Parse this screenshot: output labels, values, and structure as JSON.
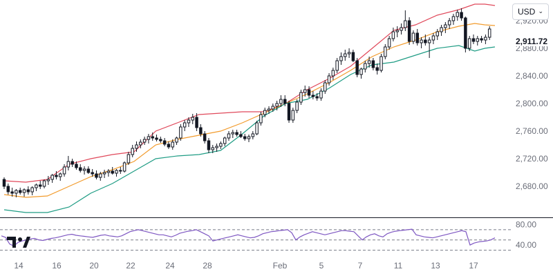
{
  "currency": {
    "selected": "USD"
  },
  "last_price_label": "2,911.72",
  "colors": {
    "up": "#131722",
    "down": "#131722",
    "upper_band": "#e0485a",
    "mid_band": "#f29b2c",
    "lower_band": "#1e9c84",
    "rsi": "#7e57c2",
    "axis_text": "#6a6d78"
  },
  "icons": {
    "logo": "tradingview-logo-icon",
    "dropdown": "chevron-down-icon"
  },
  "chart_data": [
    {
      "type": "candlestick",
      "title": "",
      "y_axis": {
        "ticks": [
          2680,
          2720,
          2760,
          2800,
          2840,
          2880,
          2920
        ],
        "tick_labels": [
          "2,680.00",
          "2,720.00",
          "2,760.00",
          "2,800.00",
          "2,840.00",
          "2,880.00",
          "2,920.00"
        ],
        "range": [
          2638,
          2950
        ]
      },
      "x_axis": {
        "tick_labels": [
          "14",
          "16",
          "20",
          "22",
          "24",
          "28",
          "Feb",
          "5",
          "7",
          "11",
          "13",
          "17"
        ]
      },
      "candles_ohlc": [
        [
          2690.0,
          2693.0,
          2676.0,
          2680.0
        ],
        [
          2680.0,
          2684.0,
          2668.0,
          2672.0
        ],
        [
          2672.0,
          2678.0,
          2665.0,
          2670.0
        ],
        [
          2670.0,
          2676.0,
          2664.0,
          2674.0
        ],
        [
          2674.0,
          2678.0,
          2668.0,
          2671.0
        ],
        [
          2671.0,
          2677.0,
          2665.0,
          2675.0
        ],
        [
          2675.0,
          2680.0,
          2668.0,
          2672.0
        ],
        [
          2672.0,
          2680.0,
          2667.0,
          2678.0
        ],
        [
          2678.0,
          2684.0,
          2673.0,
          2682.0
        ],
        [
          2682.0,
          2688.0,
          2676.0,
          2680.0
        ],
        [
          2680.0,
          2690.0,
          2677.0,
          2688.0
        ],
        [
          2688.0,
          2695.0,
          2682.0,
          2690.0
        ],
        [
          2690.0,
          2698.0,
          2685.0,
          2696.0
        ],
        [
          2696.0,
          2702.0,
          2690.0,
          2694.0
        ],
        [
          2694.0,
          2700.0,
          2688.0,
          2698.0
        ],
        [
          2698.0,
          2712.0,
          2694.0,
          2708.0
        ],
        [
          2708.0,
          2724.0,
          2703.0,
          2716.0
        ],
        [
          2716.0,
          2720.0,
          2708.0,
          2712.0
        ],
        [
          2712.0,
          2716.0,
          2704.0,
          2707.0
        ],
        [
          2707.0,
          2712.0,
          2700.0,
          2703.0
        ],
        [
          2703.0,
          2709.0,
          2697.0,
          2705.0
        ],
        [
          2705.0,
          2709.0,
          2698.0,
          2700.0
        ],
        [
          2700.0,
          2705.0,
          2694.0,
          2698.0
        ],
        [
          2698.0,
          2703.0,
          2690.0,
          2693.0
        ],
        [
          2693.0,
          2701.0,
          2688.0,
          2698.0
        ],
        [
          2698.0,
          2704.0,
          2692.0,
          2700.0
        ],
        [
          2700.0,
          2705.0,
          2694.0,
          2702.0
        ],
        [
          2702.0,
          2708.0,
          2697.0,
          2699.0
        ],
        [
          2699.0,
          2705.0,
          2694.0,
          2703.0
        ],
        [
          2703.0,
          2708.0,
          2698.0,
          2702.0
        ],
        [
          2702.0,
          2716.0,
          2700.0,
          2714.0
        ],
        [
          2714.0,
          2730.0,
          2711.0,
          2726.0
        ],
        [
          2726.0,
          2740.0,
          2722.0,
          2735.0
        ],
        [
          2735.0,
          2745.0,
          2730.0,
          2740.0
        ],
        [
          2740.0,
          2748.0,
          2735.0,
          2744.0
        ],
        [
          2744.0,
          2752.0,
          2740.0,
          2748.0
        ],
        [
          2748.0,
          2756.0,
          2742.0,
          2752.0
        ],
        [
          2752.0,
          2758.0,
          2746.0,
          2750.0
        ],
        [
          2750.0,
          2755.0,
          2745.0,
          2748.0
        ],
        [
          2748.0,
          2752.0,
          2743.0,
          2746.0
        ],
        [
          2746.0,
          2750.0,
          2738.0,
          2741.0
        ],
        [
          2741.0,
          2745.0,
          2734.0,
          2737.0
        ],
        [
          2737.0,
          2748.0,
          2733.0,
          2744.0
        ],
        [
          2744.0,
          2752.0,
          2740.0,
          2750.0
        ],
        [
          2750.0,
          2770.0,
          2746.0,
          2766.0
        ],
        [
          2766.0,
          2776.0,
          2760.0,
          2772.0
        ],
        [
          2772.0,
          2780.0,
          2766.0,
          2776.0
        ],
        [
          2776.0,
          2785.0,
          2770.0,
          2780.0
        ],
        [
          2780.0,
          2786.0,
          2760.0,
          2765.0
        ],
        [
          2765.0,
          2770.0,
          2752.0,
          2756.0
        ],
        [
          2756.0,
          2760.0,
          2742.0,
          2746.0
        ],
        [
          2746.0,
          2750.0,
          2728.0,
          2733.0
        ],
        [
          2733.0,
          2740.0,
          2728.0,
          2736.0
        ],
        [
          2736.0,
          2742.0,
          2730.0,
          2738.0
        ],
        [
          2738.0,
          2745.0,
          2734.0,
          2742.0
        ],
        [
          2742.0,
          2752.0,
          2738.0,
          2750.0
        ],
        [
          2750.0,
          2760.0,
          2746.0,
          2756.0
        ],
        [
          2756.0,
          2762.0,
          2750.0,
          2758.0
        ],
        [
          2758.0,
          2762.0,
          2752.0,
          2755.0
        ],
        [
          2755.0,
          2760.0,
          2750.0,
          2752.0
        ],
        [
          2752.0,
          2756.0,
          2746.0,
          2749.0
        ],
        [
          2749.0,
          2755.0,
          2744.0,
          2752.0
        ],
        [
          2752.0,
          2760.0,
          2748.0,
          2756.0
        ],
        [
          2756.0,
          2775.0,
          2754.0,
          2772.0
        ],
        [
          2772.0,
          2788.0,
          2768.0,
          2784.0
        ],
        [
          2784.0,
          2794.0,
          2780.0,
          2790.0
        ],
        [
          2790.0,
          2796.0,
          2785.0,
          2792.0
        ],
        [
          2792.0,
          2800.0,
          2788.0,
          2796.0
        ],
        [
          2796.0,
          2804.0,
          2790.0,
          2800.0
        ],
        [
          2800.0,
          2812.0,
          2795.0,
          2806.0
        ],
        [
          2806.0,
          2812.0,
          2796.0,
          2800.0
        ],
        [
          2800.0,
          2804.0,
          2772.0,
          2776.0
        ],
        [
          2776.0,
          2794.0,
          2772.0,
          2790.0
        ],
        [
          2790.0,
          2806.0,
          2786.0,
          2802.0
        ],
        [
          2802.0,
          2820.0,
          2798.0,
          2816.0
        ],
        [
          2816.0,
          2826.0,
          2810.0,
          2820.0
        ],
        [
          2820.0,
          2825.0,
          2808.0,
          2812.0
        ],
        [
          2812.0,
          2818.0,
          2806.0,
          2810.0
        ],
        [
          2810.0,
          2815.0,
          2804.0,
          2808.0
        ],
        [
          2808.0,
          2822.0,
          2804.0,
          2818.0
        ],
        [
          2818.0,
          2834.0,
          2814.0,
          2830.0
        ],
        [
          2830.0,
          2844.0,
          2826.0,
          2840.0
        ],
        [
          2840.0,
          2852.0,
          2834.0,
          2848.0
        ],
        [
          2848.0,
          2866.0,
          2844.0,
          2862.0
        ],
        [
          2862.0,
          2874.0,
          2856.0,
          2868.0
        ],
        [
          2868.0,
          2878.0,
          2862.0,
          2872.0
        ],
        [
          2872.0,
          2880.0,
          2866.0,
          2874.0
        ],
        [
          2874.0,
          2878.0,
          2860.0,
          2862.0
        ],
        [
          2862.0,
          2866.0,
          2838.0,
          2842.0
        ],
        [
          2842.0,
          2852.0,
          2836.0,
          2850.0
        ],
        [
          2850.0,
          2862.0,
          2845.0,
          2858.0
        ],
        [
          2858.0,
          2868.0,
          2852.0,
          2862.0
        ],
        [
          2862.0,
          2866.0,
          2848.0,
          2852.0
        ],
        [
          2852.0,
          2858.0,
          2842.0,
          2848.0
        ],
        [
          2848.0,
          2872.0,
          2845.0,
          2868.0
        ],
        [
          2868.0,
          2886.0,
          2864.0,
          2882.0
        ],
        [
          2882.0,
          2898.0,
          2878.0,
          2894.0
        ],
        [
          2894.0,
          2910.0,
          2890.0,
          2904.0
        ],
        [
          2904.0,
          2912.0,
          2896.0,
          2906.0
        ],
        [
          2906.0,
          2916.0,
          2900.0,
          2910.0
        ],
        [
          2910.0,
          2935.0,
          2905.0,
          2920.0
        ],
        [
          2920.0,
          2925.0,
          2885.0,
          2890.0
        ],
        [
          2890.0,
          2906.0,
          2886.0,
          2902.0
        ],
        [
          2902.0,
          2908.0,
          2884.0,
          2888.0
        ],
        [
          2888.0,
          2896.0,
          2880.0,
          2892.0
        ],
        [
          2892.0,
          2900.0,
          2884.0,
          2888.0
        ],
        [
          2888.0,
          2896.0,
          2866.0,
          2892.0
        ],
        [
          2892.0,
          2902.0,
          2886.0,
          2898.0
        ],
        [
          2898.0,
          2908.0,
          2892.0,
          2904.0
        ],
        [
          2904.0,
          2914.0,
          2898.0,
          2910.0
        ],
        [
          2910.0,
          2918.0,
          2902.0,
          2914.0
        ],
        [
          2914.0,
          2924.0,
          2908.0,
          2920.0
        ],
        [
          2920.0,
          2930.0,
          2914.0,
          2926.0
        ],
        [
          2926.0,
          2936.0,
          2920.0,
          2932.0
        ],
        [
          2932.0,
          2938.0,
          2920.0,
          2924.0
        ],
        [
          2924.0,
          2926.0,
          2874.0,
          2880.0
        ],
        [
          2880.0,
          2898.0,
          2876.0,
          2894.0
        ],
        [
          2894.0,
          2900.0,
          2886.0,
          2890.0
        ],
        [
          2890.0,
          2898.0,
          2884.0,
          2894.0
        ],
        [
          2894.0,
          2898.0,
          2888.0,
          2892.0
        ],
        [
          2892.0,
          2900.0,
          2886.0,
          2896.0
        ],
        [
          2896.0,
          2912.0,
          2892.0,
          2908.0
        ]
      ],
      "bollinger_upper": [
        [
          0,
          2688
        ],
        [
          15,
          2686
        ],
        [
          30,
          2690
        ],
        [
          45,
          2712
        ],
        [
          60,
          2720
        ],
        [
          75,
          2726
        ],
        [
          90,
          2730
        ],
        [
          105,
          2760
        ],
        [
          120,
          2772
        ],
        [
          135,
          2784
        ],
        [
          150,
          2786
        ],
        [
          165,
          2788
        ],
        [
          180,
          2788
        ],
        [
          195,
          2800
        ],
        [
          210,
          2820
        ],
        [
          225,
          2836
        ],
        [
          240,
          2854
        ],
        [
          255,
          2880
        ],
        [
          270,
          2906
        ],
        [
          285,
          2914
        ],
        [
          300,
          2928
        ],
        [
          315,
          2936
        ],
        [
          326,
          2944
        ],
        [
          333,
          2944
        ],
        [
          340,
          2942
        ]
      ],
      "bollinger_mid": [
        [
          0,
          2668
        ],
        [
          15,
          2664
        ],
        [
          30,
          2666
        ],
        [
          45,
          2680
        ],
        [
          60,
          2694
        ],
        [
          75,
          2704
        ],
        [
          90,
          2716
        ],
        [
          105,
          2740
        ],
        [
          120,
          2748
        ],
        [
          135,
          2754
        ],
        [
          150,
          2760
        ],
        [
          165,
          2772
        ],
        [
          180,
          2786
        ],
        [
          195,
          2800
        ],
        [
          210,
          2814
        ],
        [
          225,
          2830
        ],
        [
          240,
          2848
        ],
        [
          255,
          2868
        ],
        [
          270,
          2882
        ],
        [
          285,
          2892
        ],
        [
          300,
          2904
        ],
        [
          315,
          2912
        ],
        [
          326,
          2916
        ],
        [
          333,
          2914
        ],
        [
          340,
          2913
        ]
      ],
      "bollinger_lower": [
        [
          0,
          2646
        ],
        [
          15,
          2642
        ],
        [
          30,
          2642
        ],
        [
          45,
          2650
        ],
        [
          60,
          2670
        ],
        [
          75,
          2684
        ],
        [
          90,
          2702
        ],
        [
          105,
          2720
        ],
        [
          120,
          2724
        ],
        [
          135,
          2726
        ],
        [
          150,
          2732
        ],
        [
          165,
          2756
        ],
        [
          180,
          2782
        ],
        [
          195,
          2800
        ],
        [
          210,
          2806
        ],
        [
          225,
          2822
        ],
        [
          240,
          2842
        ],
        [
          255,
          2856
        ],
        [
          270,
          2860
        ],
        [
          285,
          2870
        ],
        [
          300,
          2880
        ],
        [
          315,
          2884
        ],
        [
          326,
          2876
        ],
        [
          333,
          2880
        ],
        [
          340,
          2882
        ]
      ]
    },
    {
      "type": "line",
      "title": "",
      "y_axis": {
        "tick_labels": [
          "80.00",
          "40.00"
        ],
        "reference_lines": [
          70,
          50,
          30
        ],
        "range": [
          20,
          90
        ]
      },
      "series": [
        {
          "values": [
            58,
            55,
            42,
            38,
            45,
            48,
            50,
            52,
            53,
            50,
            49,
            51,
            53,
            54,
            56,
            58,
            60,
            61,
            59,
            58,
            57,
            56,
            55,
            57,
            59,
            60,
            58,
            57,
            56,
            58,
            62,
            66,
            68,
            70,
            68,
            66,
            64,
            62,
            60,
            60,
            58,
            56,
            59,
            63,
            65,
            67,
            68,
            70,
            66,
            62,
            58,
            48,
            50,
            52,
            54,
            56,
            58,
            60,
            58,
            56,
            54,
            55,
            58,
            62,
            64,
            66,
            67,
            68,
            69,
            70,
            64,
            50,
            56,
            60,
            63,
            66,
            64,
            62,
            60,
            62,
            64,
            66,
            68,
            68,
            67,
            66,
            58,
            50,
            56,
            60,
            62,
            58,
            56,
            62,
            65,
            67,
            68,
            69,
            70,
            71,
            60,
            58,
            56,
            55,
            54,
            56,
            58,
            60,
            62,
            64,
            66,
            68,
            66,
            40,
            44,
            46,
            47,
            48,
            50,
            54
          ]
        }
      ]
    }
  ]
}
